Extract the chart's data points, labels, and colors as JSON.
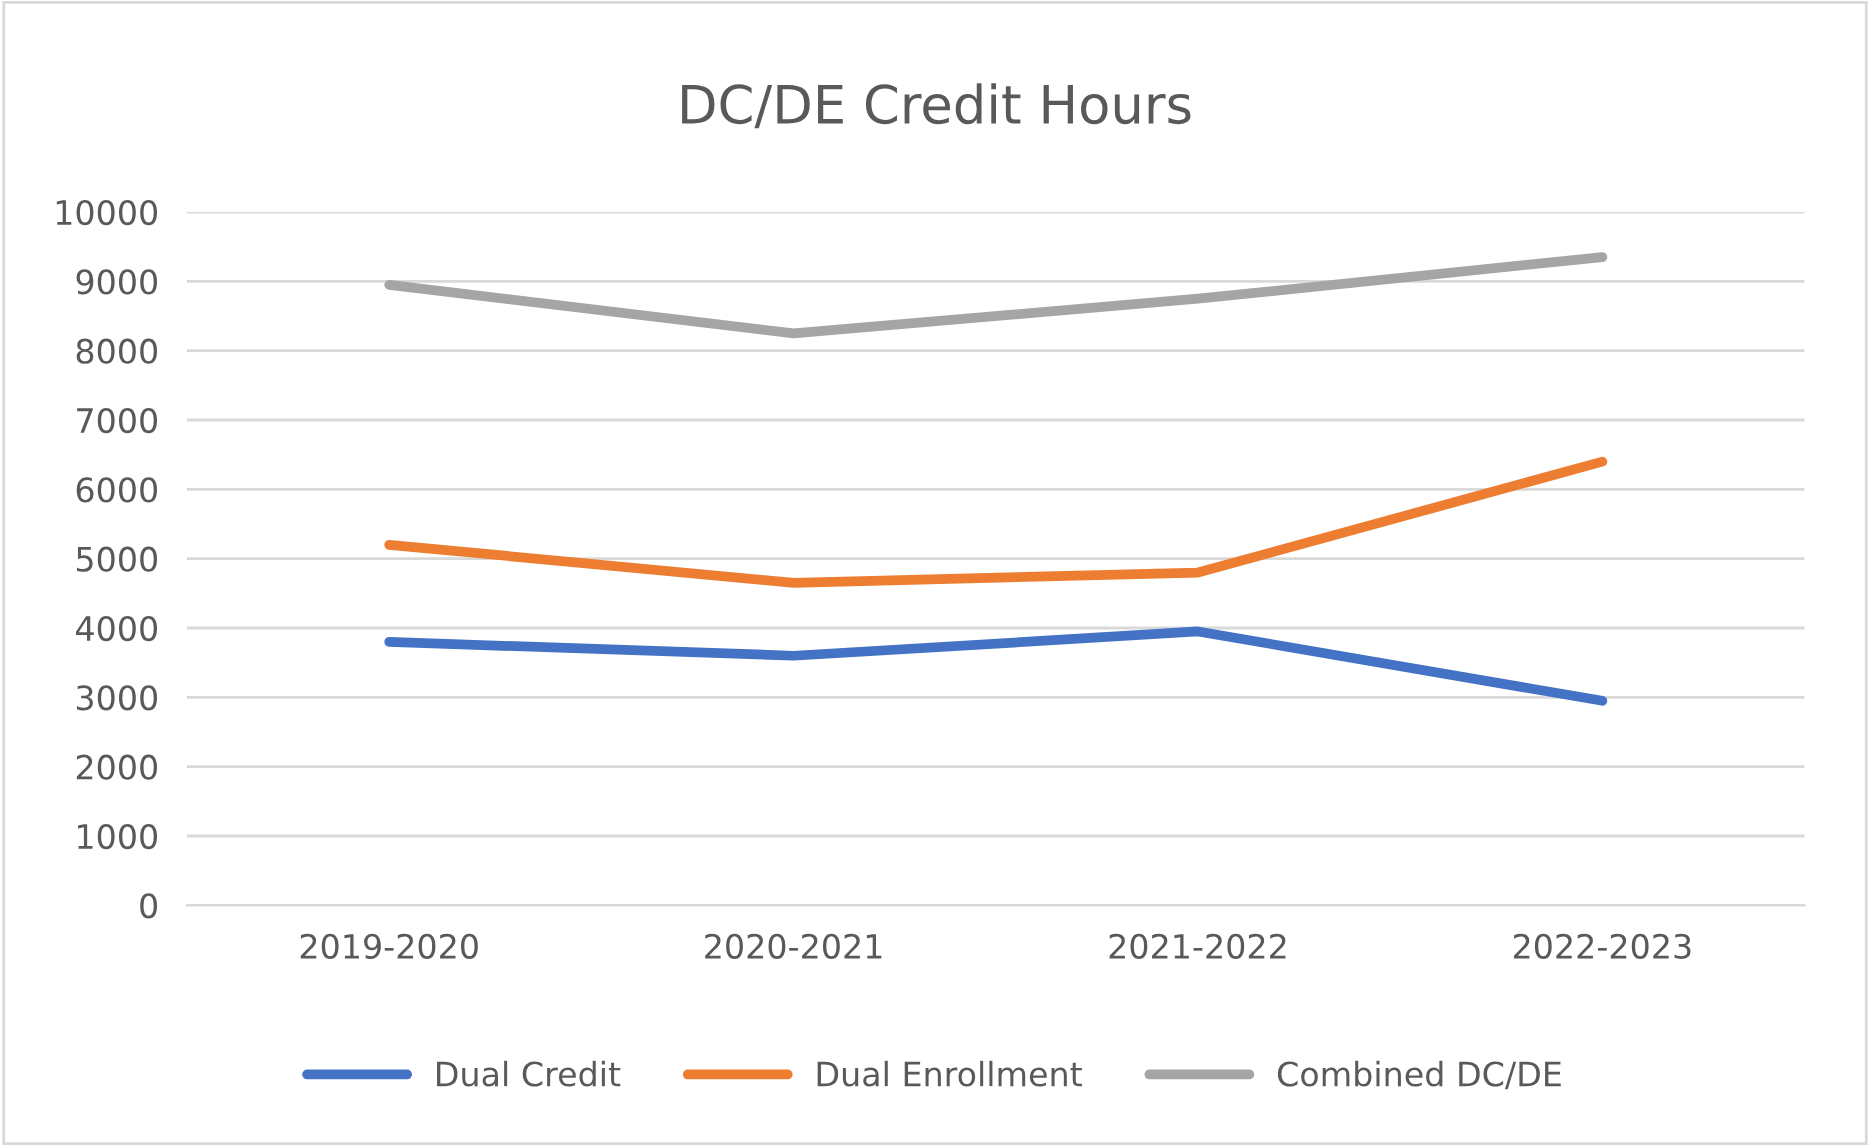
{
  "chart_data": {
    "type": "line",
    "title": "DC/DE Credit Hours",
    "categories": [
      "2019-2020",
      "2020-2021",
      "2021-2022",
      "2022-2023"
    ],
    "series": [
      {
        "name": "Dual Credit",
        "color": "#4472c4",
        "values": [
          3800,
          3600,
          3950,
          2950
        ]
      },
      {
        "name": "Dual Enrollment",
        "color": "#ed7d31",
        "values": [
          5200,
          4650,
          4800,
          6400
        ]
      },
      {
        "name": "Combined DC/DE",
        "color": "#a5a5a5",
        "values": [
          8950,
          8250,
          8750,
          9350
        ]
      }
    ],
    "ylim": [
      0,
      10000
    ],
    "yticks": [
      0,
      1000,
      2000,
      3000,
      4000,
      5000,
      6000,
      7000,
      8000,
      9000,
      10000
    ],
    "grid": "y",
    "legend": "bottom",
    "marker": "none",
    "line_style": "solid"
  }
}
